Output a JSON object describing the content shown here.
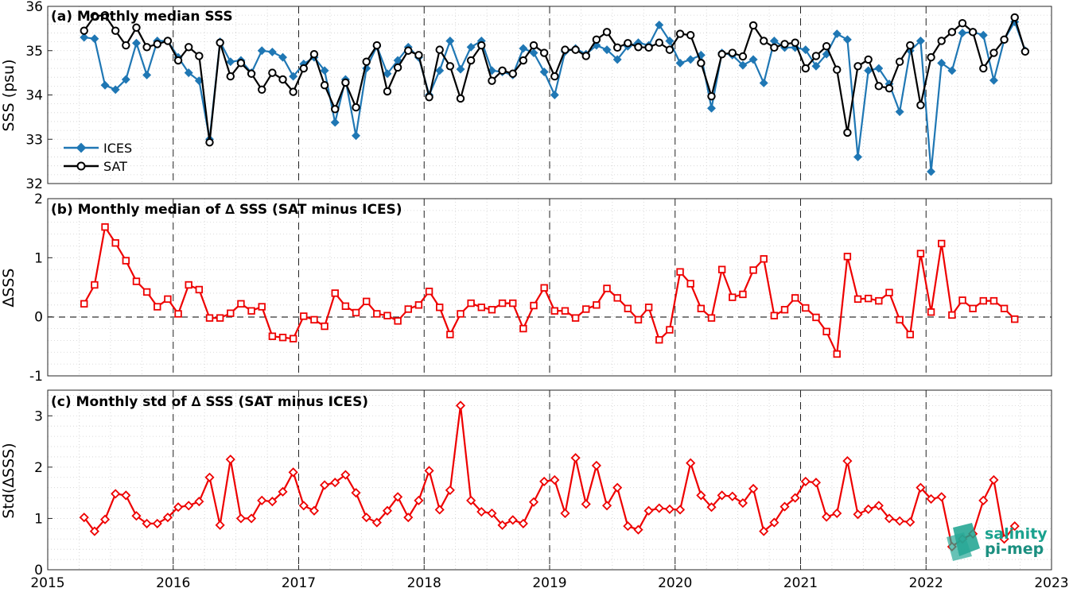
{
  "colors": {
    "ices": "#1f77b4",
    "sat": "#000000",
    "delta": "#ee0000",
    "grid": "#d9d9d9",
    "frame": "#262626",
    "logo_teal": "#1aa28e",
    "logo_dark": "#27a897"
  },
  "logo": {
    "line1": "salinity",
    "line2": "pi-mep"
  },
  "chart_data": [
    {
      "type": "line",
      "title": "(a) Monthly median SSS",
      "ylabel": "SSS (psu)",
      "xlabel": "",
      "xlim": [
        2015,
        2023
      ],
      "ylim": [
        32,
        36
      ],
      "yticks": [
        32,
        33,
        34,
        35,
        36
      ],
      "grid": true,
      "legend_position": "bottom-left",
      "series": [
        {
          "name": "ICES",
          "marker": "diamond",
          "color": "#1f77b4",
          "x_start_year": 2015.29,
          "x_step_months": 1,
          "values": [
            35.3,
            35.27,
            34.22,
            34.12,
            34.35,
            35.17,
            34.45,
            35.22,
            35.22,
            34.85,
            34.5,
            34.32,
            33.0,
            35.2,
            34.75,
            34.78,
            34.5,
            35.0,
            34.97,
            34.85,
            34.42,
            34.7,
            34.85,
            34.55,
            33.38,
            34.35,
            33.08,
            34.6,
            35.1,
            34.48,
            34.78,
            35.08,
            34.85,
            34.0,
            34.55,
            35.22,
            34.58,
            35.08,
            35.22,
            34.55,
            34.52,
            34.45,
            35.05,
            34.95,
            34.52,
            34.0,
            34.98,
            35.05,
            34.92,
            35.12,
            35.02,
            34.8,
            35.1,
            35.18,
            35.12,
            35.58,
            35.22,
            34.72,
            34.8,
            34.9,
            33.7,
            34.95,
            34.9,
            34.67,
            34.8,
            34.27,
            35.22,
            35.07,
            35.07,
            35.02,
            34.65,
            34.92,
            35.38,
            35.25,
            32.6,
            34.55,
            34.6,
            34.25,
            33.62,
            35.0,
            35.22,
            32.27,
            34.72,
            34.55,
            35.4,
            35.42,
            35.35,
            34.33,
            35.25,
            35.65,
            35.0
          ]
        },
        {
          "name": "SAT",
          "marker": "circle",
          "color": "#000000",
          "x_start_year": 2015.29,
          "x_step_months": 1,
          "values": [
            35.45,
            35.78,
            35.8,
            35.45,
            35.12,
            35.52,
            35.08,
            35.15,
            35.22,
            34.78,
            35.08,
            34.88,
            32.93,
            35.18,
            34.42,
            34.72,
            34.48,
            34.12,
            34.5,
            34.35,
            34.07,
            34.6,
            34.92,
            34.22,
            33.68,
            34.28,
            33.72,
            34.75,
            35.12,
            34.08,
            34.62,
            35.0,
            34.9,
            33.95,
            35.02,
            34.65,
            33.92,
            34.78,
            35.12,
            34.32,
            34.55,
            34.48,
            34.78,
            35.12,
            34.95,
            34.42,
            35.02,
            35.02,
            34.88,
            35.25,
            35.42,
            35.07,
            35.17,
            35.08,
            35.07,
            35.18,
            35.02,
            35.38,
            35.35,
            34.72,
            33.97,
            34.92,
            34.95,
            34.87,
            35.57,
            35.22,
            35.07,
            35.15,
            35.18,
            34.6,
            34.88,
            35.1,
            34.57,
            33.15,
            34.65,
            34.8,
            34.2,
            34.15,
            34.75,
            35.12,
            33.77,
            34.85,
            35.22,
            35.42,
            35.62,
            35.42,
            34.6,
            34.95,
            35.25,
            35.75,
            34.98
          ]
        }
      ]
    },
    {
      "type": "line",
      "title": "(b) Monthly median of ∆ SSS (SAT minus ICES)",
      "ylabel": "∆SSS",
      "xlabel": "",
      "xlim": [
        2015,
        2023
      ],
      "ylim": [
        -1,
        2
      ],
      "yticks": [
        -1,
        0,
        1,
        2
      ],
      "grid": true,
      "zero_line": true,
      "series": [
        {
          "name": "",
          "marker": "square",
          "color": "#ee0000",
          "x_start_year": 2015.29,
          "x_step_months": 1,
          "values": [
            0.22,
            0.54,
            1.52,
            1.25,
            0.95,
            0.6,
            0.42,
            0.17,
            0.3,
            0.05,
            0.54,
            0.46,
            -0.02,
            -0.02,
            0.06,
            0.22,
            0.1,
            0.17,
            -0.33,
            -0.35,
            -0.37,
            0.01,
            -0.05,
            -0.16,
            0.4,
            0.18,
            0.07,
            0.26,
            0.05,
            0.02,
            -0.07,
            0.13,
            0.2,
            0.43,
            0.16,
            -0.3,
            0.05,
            0.23,
            0.16,
            0.12,
            0.23,
            0.23,
            -0.2,
            0.19,
            0.49,
            0.1,
            0.1,
            -0.02,
            0.13,
            0.2,
            0.48,
            0.32,
            0.14,
            -0.05,
            0.16,
            -0.39,
            -0.22,
            0.76,
            0.56,
            0.14,
            -0.02,
            0.8,
            0.33,
            0.38,
            0.79,
            0.98,
            0.02,
            0.12,
            0.32,
            0.15,
            -0.01,
            -0.25,
            -0.63,
            1.02,
            0.3,
            0.31,
            0.27,
            0.41,
            -0.05,
            -0.3,
            1.07,
            0.08,
            1.24,
            0.03,
            0.28,
            0.14,
            0.27,
            0.27,
            0.14,
            -0.04
          ]
        }
      ]
    },
    {
      "type": "line",
      "title": "(c) Monthly std of ∆ SSS (SAT minus ICES)",
      "ylabel": "Std(∆SSS)",
      "xlabel": "",
      "xlim": [
        2015,
        2023
      ],
      "ylim": [
        0,
        3.5
      ],
      "yticks": [
        0,
        1,
        2,
        3
      ],
      "xticks": [
        2015,
        2016,
        2017,
        2018,
        2019,
        2020,
        2021,
        2022,
        2023
      ],
      "grid": true,
      "series": [
        {
          "name": "",
          "marker": "diamond",
          "color": "#ee0000",
          "x_start_year": 2015.29,
          "x_step_months": 1,
          "values": [
            1.02,
            0.75,
            0.98,
            1.48,
            1.45,
            1.05,
            0.9,
            0.9,
            1.02,
            1.22,
            1.25,
            1.33,
            1.8,
            0.87,
            2.15,
            1.0,
            1.0,
            1.35,
            1.33,
            1.52,
            1.9,
            1.25,
            1.15,
            1.65,
            1.7,
            1.85,
            1.5,
            1.02,
            0.92,
            1.15,
            1.42,
            1.02,
            1.35,
            1.93,
            1.17,
            1.55,
            3.2,
            1.35,
            1.13,
            1.1,
            0.87,
            0.97,
            0.9,
            1.32,
            1.72,
            1.75,
            1.1,
            2.18,
            1.28,
            2.03,
            1.25,
            1.6,
            0.85,
            0.78,
            1.15,
            1.2,
            1.18,
            1.17,
            2.08,
            1.45,
            1.22,
            1.45,
            1.43,
            1.3,
            1.58,
            0.75,
            0.92,
            1.23,
            1.4,
            1.72,
            1.7,
            1.03,
            1.1,
            2.12,
            1.08,
            1.18,
            1.25,
            1.0,
            0.95,
            0.93,
            1.6,
            1.38,
            1.42,
            0.45,
            0.6,
            0.7,
            1.35,
            1.75,
            0.6,
            0.85
          ]
        }
      ]
    }
  ]
}
